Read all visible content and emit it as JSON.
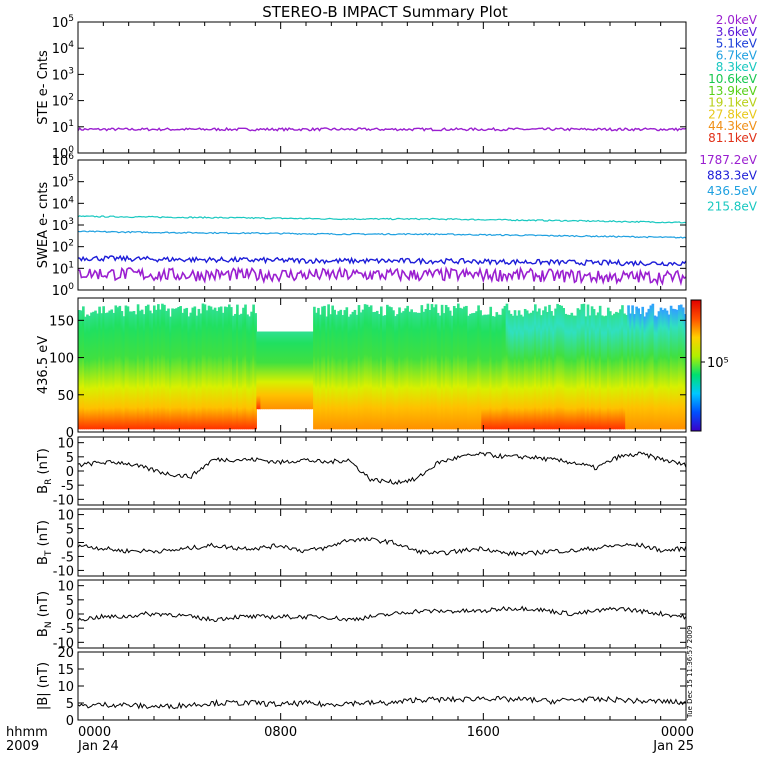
{
  "title": "STEREO-B IMPACT Summary Plot",
  "footer": {
    "left_top": "hhmm",
    "left_bottom": "2009"
  },
  "timestamp": "Tue Dec 15 11:36:57 2009",
  "x_axis": {
    "unit": "hhmm",
    "ticks": [
      {
        "time": "0000",
        "date": "Jan 24",
        "frac": 0
      },
      {
        "time": "0800",
        "date": "",
        "frac": 0.3333
      },
      {
        "time": "1600",
        "date": "",
        "frac": 0.6667
      },
      {
        "time": "0000",
        "date": "Jan 25",
        "frac": 1
      }
    ]
  },
  "legend_ste": [
    {
      "label": "2.0keV",
      "color": "#9a1fd0"
    },
    {
      "label": "3.6keV",
      "color": "#5b1ad8"
    },
    {
      "label": "5.1keV",
      "color": "#1c3fd8"
    },
    {
      "label": "6.7keV",
      "color": "#1fa0e0"
    },
    {
      "label": "8.3keV",
      "color": "#18c8c0"
    },
    {
      "label": "10.6keV",
      "color": "#18c850"
    },
    {
      "label": "13.9keV",
      "color": "#58d018"
    },
    {
      "label": "19.1keV",
      "color": "#b8d018"
    },
    {
      "label": "27.8keV",
      "color": "#e8c818"
    },
    {
      "label": "44.3keV",
      "color": "#f09018"
    },
    {
      "label": "81.1keV",
      "color": "#e03018"
    }
  ],
  "legend_swea": [
    {
      "label": "1787.2eV",
      "color": "#9a1fd0"
    },
    {
      "label": "883.3eV",
      "color": "#1c1cd8"
    },
    {
      "label": "436.5eV",
      "color": "#1fa0e0"
    },
    {
      "label": "215.8eV",
      "color": "#18c8c0"
    }
  ],
  "colorbar": {
    "label": "10⁵",
    "colors": [
      "#3a00c8",
      "#0050ff",
      "#00c8ff",
      "#00e070",
      "#b0f000",
      "#ffd000",
      "#ff5000",
      "#e00000"
    ]
  },
  "chart_data": [
    {
      "type": "line",
      "ylabel": "STE e- Cnts",
      "yscale": "log",
      "ylim": [
        1,
        100000
      ],
      "yticks": [
        {
          "base": "10",
          "exp": "0"
        },
        {
          "base": "10",
          "exp": "1"
        },
        {
          "base": "10",
          "exp": "2"
        },
        {
          "base": "10",
          "exp": "3"
        },
        {
          "base": "10",
          "exp": "4"
        },
        {
          "base": "10",
          "exp": "5"
        }
      ],
      "series": [
        {
          "name": "2.0keV",
          "level": 8,
          "noise": 0.05,
          "color": "#9a1fd0",
          "width": 1.4
        }
      ]
    },
    {
      "type": "line",
      "ylabel": "SWEA e- cnts",
      "yscale": "log",
      "ylim": [
        1,
        1000000
      ],
      "yticks": [
        {
          "base": "10",
          "exp": "0"
        },
        {
          "base": "10",
          "exp": "1"
        },
        {
          "base": "10",
          "exp": "2"
        },
        {
          "base": "10",
          "exp": "3"
        },
        {
          "base": "10",
          "exp": "4"
        },
        {
          "base": "10",
          "exp": "5"
        },
        {
          "base": "10",
          "exp": "6"
        }
      ],
      "series": [
        {
          "name": "215.8eV",
          "values": [
            2500,
            2300,
            2100,
            1900,
            1900,
            1700,
            1500,
            1300
          ],
          "noise": 0.03,
          "color": "#18c8c0",
          "width": 1.2
        },
        {
          "name": "436.5eV",
          "values": [
            500,
            450,
            420,
            380,
            380,
            340,
            300,
            260
          ],
          "noise": 0.03,
          "color": "#1fa0e0",
          "width": 1.2
        },
        {
          "name": "883.3eV",
          "values": [
            30,
            26,
            24,
            22,
            22,
            20,
            18,
            17
          ],
          "noise": 0.12,
          "color": "#1c1cd8",
          "width": 1.4
        },
        {
          "name": "1787.2eV",
          "values": [
            6,
            5,
            5,
            5,
            5,
            5,
            4,
            4
          ],
          "noise": 0.3,
          "color": "#9a1fd0",
          "width": 1.6
        }
      ]
    },
    {
      "type": "heatmap",
      "ylabel": "436.5 eV",
      "ylim": [
        0,
        180
      ],
      "yticks": [
        0,
        50,
        100,
        150
      ],
      "note": "pitch-angle distribution of 436.5 eV electrons"
    },
    {
      "type": "line",
      "ylabel_main": "B",
      "ylabel_sub": "R",
      "ylabel_unit": "(nT)",
      "ylim": [
        -12,
        12
      ],
      "yticks": [
        -10,
        -5,
        0,
        5,
        10
      ],
      "values": [
        2,
        3,
        3,
        1,
        -1,
        -2,
        4,
        4,
        4,
        3,
        4,
        3,
        4,
        -3,
        -4,
        -3,
        3,
        5,
        6,
        5,
        5,
        4,
        3,
        1,
        5,
        6,
        4,
        2
      ]
    },
    {
      "type": "line",
      "ylabel_main": "B",
      "ylabel_sub": "T",
      "ylabel_unit": "(nT)",
      "ylim": [
        -12,
        12
      ],
      "yticks": [
        -10,
        -5,
        0,
        5,
        10
      ],
      "values": [
        -1,
        -2,
        -3,
        -3,
        -3,
        -2,
        -1,
        -2,
        -2,
        -1,
        -3,
        -2,
        1,
        1,
        0,
        -3,
        -4,
        -3,
        -2,
        -4,
        -4,
        -3,
        -3,
        -2,
        -1,
        -1,
        -3,
        -2
      ]
    },
    {
      "type": "line",
      "ylabel_main": "B",
      "ylabel_sub": "N",
      "ylabel_unit": "(nT)",
      "ylim": [
        -12,
        12
      ],
      "yticks": [
        -10,
        -5,
        0,
        5,
        10
      ],
      "values": [
        -2,
        -1,
        -1,
        0,
        0,
        -1,
        -2,
        -1,
        -1,
        -1,
        -1,
        -1,
        -2,
        -1,
        0,
        1,
        1,
        1,
        1,
        2,
        2,
        1,
        0,
        1,
        2,
        1,
        0,
        -1
      ]
    },
    {
      "type": "line",
      "ylabel": "|B| (nT)",
      "ylim": [
        0,
        20
      ],
      "yticks": [
        0,
        5,
        10,
        15,
        20
      ],
      "values": [
        4,
        4.5,
        4.5,
        4,
        4,
        4.5,
        5,
        5,
        5,
        4.5,
        5,
        4.5,
        5,
        5,
        5,
        6,
        6,
        6,
        6.5,
        6,
        6,
        5.5,
        6,
        6,
        6,
        5.5,
        5.5,
        5
      ]
    }
  ]
}
